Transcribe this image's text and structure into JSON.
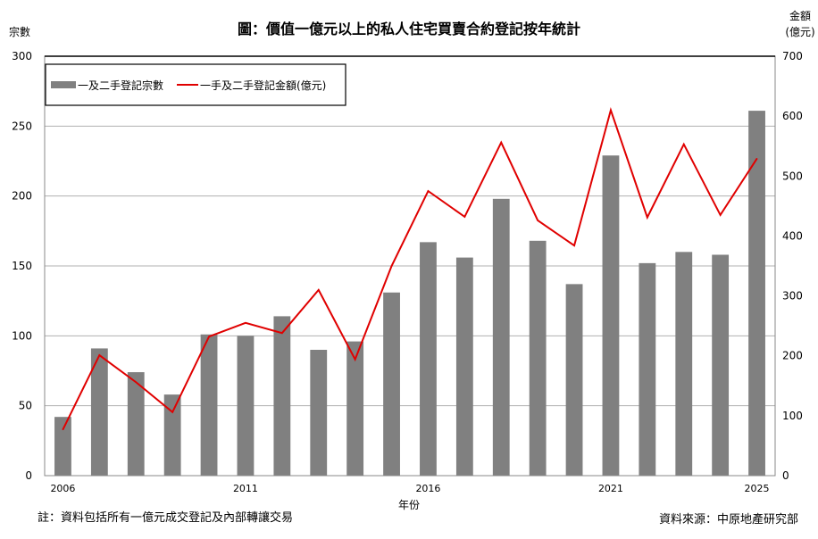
{
  "chart_data": {
    "type": "bar+line",
    "title": "圖：價值一億元以上的私人住宅買賣合約登記按年統計",
    "xlabel": "年份",
    "ylabel_left": "宗數",
    "ylabel_right": "金額\n(億元)",
    "ylabel_right_lines": [
      "金額",
      "(億元)"
    ],
    "ylim_left": [
      0,
      300
    ],
    "ylim_right": [
      0,
      700
    ],
    "yticks_left": [
      0,
      50,
      100,
      150,
      200,
      250,
      300
    ],
    "yticks_right": [
      0,
      100,
      200,
      300,
      400,
      500,
      600,
      700
    ],
    "xtick_labels": [
      "2006",
      "2011",
      "2016",
      "2021",
      "2025"
    ],
    "categories": [
      "2006",
      "2007",
      "2008",
      "2009",
      "2010",
      "2011",
      "2012",
      "2013",
      "2014",
      "2015",
      "2016",
      "2017",
      "2018",
      "2019",
      "2020",
      "2021",
      "2022",
      "2023",
      "2024",
      "2025"
    ],
    "grid": true,
    "legend_position": "top-left",
    "series": [
      {
        "name": "一及二手登記宗數",
        "type": "bar",
        "axis": "left",
        "color": "#808080",
        "values": [
          42,
          91,
          74,
          58,
          101,
          100,
          114,
          90,
          96,
          131,
          167,
          156,
          198,
          168,
          137,
          229,
          152,
          160,
          158,
          261
        ]
      },
      {
        "name": "一手及二手登記金額(億元)",
        "type": "line",
        "axis": "right",
        "color": "#e00000",
        "values": [
          77,
          201,
          156,
          106,
          232,
          255,
          238,
          310,
          194,
          350,
          475,
          432,
          556,
          426,
          384,
          610,
          431,
          553,
          435,
          529
        ]
      }
    ],
    "note": "註：資料包括所有一億元成交登記及內部轉讓交易",
    "source": "資料來源：中原地產研究部"
  }
}
